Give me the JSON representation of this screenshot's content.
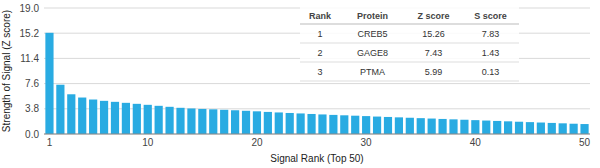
{
  "chart_data": {
    "type": "bar",
    "xlabel": "Signal Rank (Top 50)",
    "ylabel": "Strength of Signal (Z score)",
    "x": [
      1,
      2,
      3,
      4,
      5,
      6,
      7,
      8,
      9,
      10,
      11,
      12,
      13,
      14,
      15,
      16,
      17,
      18,
      19,
      20,
      21,
      22,
      23,
      24,
      25,
      26,
      27,
      28,
      29,
      30,
      31,
      32,
      33,
      34,
      35,
      36,
      37,
      38,
      39,
      40,
      41,
      42,
      43,
      44,
      45,
      46,
      47,
      48,
      49,
      50
    ],
    "values": [
      15.26,
      7.43,
      5.99,
      5.5,
      5.2,
      5.0,
      4.85,
      4.7,
      4.55,
      4.4,
      4.25,
      4.1,
      3.95,
      3.85,
      3.78,
      3.72,
      3.65,
      3.58,
      3.5,
      3.42,
      3.33,
      3.25,
      3.17,
      3.1,
      3.02,
      2.95,
      2.88,
      2.82,
      2.76,
      2.7,
      2.63,
      2.57,
      2.51,
      2.45,
      2.39,
      2.33,
      2.27,
      2.21,
      2.15,
      2.09,
      2.03,
      1.97,
      1.91,
      1.85,
      1.79,
      1.73,
      1.67,
      1.61,
      1.55,
      1.5
    ],
    "color": "#29ABE2",
    "xlim": [
      0.5,
      50.5
    ],
    "xticks": [
      1,
      10,
      20,
      30,
      40,
      50
    ],
    "ylim": [
      0,
      19.0
    ],
    "yticks": [
      {
        "value": 0,
        "label": "0.0"
      },
      3.8,
      7.6,
      11.4,
      15.2,
      {
        "value": 19.0,
        "label": "19.0"
      }
    ],
    "grid": true,
    "table": {
      "columns": [
        "Rank",
        "Protein",
        "Z score",
        "S score"
      ],
      "rows": [
        [
          "1",
          "CREB5",
          "15.26",
          "7.83"
        ],
        [
          "2",
          "GAGE8",
          "7.43",
          "1.43"
        ],
        [
          "3",
          "PTMA",
          "5.99",
          "0.13"
        ]
      ]
    }
  }
}
